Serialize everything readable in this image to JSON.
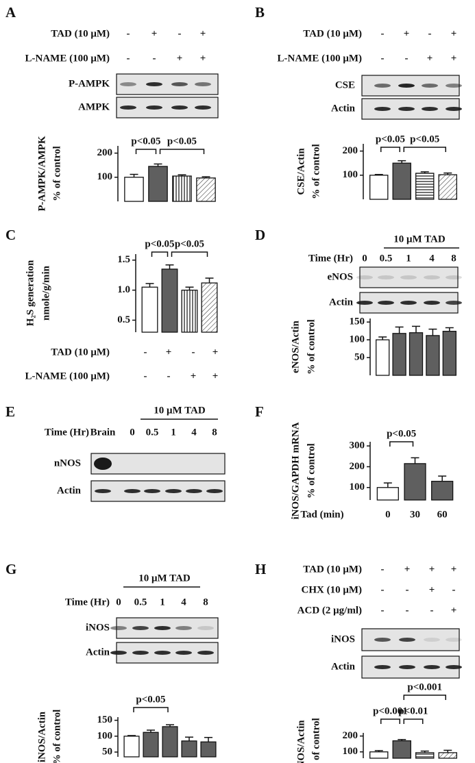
{
  "panels": [
    {
      "letter": "A",
      "treatments": [
        {
          "label": "TAD (10 μM)",
          "signs": [
            "-",
            "+",
            "-",
            "+"
          ]
        },
        {
          "label": "L-NAME (100 μM)",
          "signs": [
            "-",
            "-",
            "+",
            "+"
          ]
        }
      ],
      "blots": [
        "P-AMPK",
        "AMPK"
      ]
    },
    {
      "letter": "B",
      "treatments": [
        {
          "label": "TAD (10 μM)",
          "signs": [
            "-",
            "+",
            "-",
            "+"
          ]
        },
        {
          "label": "L-NAME (100 μM)",
          "signs": [
            "-",
            "-",
            "+",
            "+"
          ]
        }
      ],
      "blots": [
        "CSE",
        "Actin"
      ]
    },
    {
      "letter": "C",
      "treatments": [
        {
          "label": "TAD (10 μM)",
          "signs": [
            "-",
            "+",
            "-",
            "+"
          ]
        },
        {
          "label": "L-NAME (100 μM)",
          "signs": [
            "-",
            "-",
            "+",
            "+"
          ]
        }
      ]
    },
    {
      "letter": "D",
      "header": "10 μM TAD",
      "time_label": "Time (Hr)",
      "lanes": [
        "0",
        "0.5",
        "1",
        "4",
        "8"
      ],
      "blots": [
        "eNOS",
        "Actin"
      ]
    },
    {
      "letter": "E",
      "header": "10 μM TAD",
      "time_label": "Time (Hr)",
      "lanes": [
        "Brain",
        "0",
        "0.5",
        "1",
        "4",
        "8"
      ],
      "blots": [
        "nNOS",
        "Actin"
      ]
    },
    {
      "letter": "F"
    },
    {
      "letter": "G",
      "header": "10 μM TAD",
      "time_label": "Time (Hr)",
      "lanes": [
        "0",
        "0.5",
        "1",
        "4",
        "8"
      ],
      "blots": [
        "iNOS",
        "Actin"
      ]
    },
    {
      "letter": "H",
      "treatments": [
        {
          "label": "TAD (10 μM)",
          "signs": [
            "-",
            "+",
            "+",
            "+"
          ]
        },
        {
          "label": "CHX (10 μM)",
          "signs": [
            "-",
            "-",
            "+",
            "-"
          ]
        },
        {
          "label": "ACD (2 μg/ml)",
          "signs": [
            "-",
            "-",
            "-",
            "+"
          ]
        }
      ],
      "blots": [
        "iNOS",
        "Actin"
      ]
    }
  ],
  "chart_data": [
    {
      "type": "bar",
      "ylabel": [
        "P-AMPK/AMPK",
        "% of control"
      ],
      "values": [
        100,
        145,
        105,
        97
      ],
      "errors": [
        12,
        10,
        5,
        5
      ],
      "bar_fills": [
        "white",
        "dark",
        "vstripes",
        "hatch"
      ],
      "ylim": [
        0,
        230
      ],
      "yticks": [
        100,
        200
      ],
      "annotations": [
        "p<0.05",
        "p<0.05"
      ]
    },
    {
      "type": "bar",
      "ylabel": [
        "CSE/Actin",
        "% of control"
      ],
      "values": [
        100,
        150,
        108,
        102
      ],
      "errors": [
        3,
        10,
        6,
        7
      ],
      "bar_fills": [
        "white",
        "dark",
        "hstripes",
        "hatch"
      ],
      "ylim": [
        0,
        230
      ],
      "yticks": [
        100,
        200
      ],
      "annotations": [
        "p<0.05",
        "p<0.05"
      ]
    },
    {
      "type": "bar",
      "ylabel": [
        "H₂S generation",
        "nmole/g/min"
      ],
      "values": [
        1.05,
        1.35,
        1.0,
        1.12
      ],
      "errors": [
        0.06,
        0.07,
        0.05,
        0.08
      ],
      "bar_fills": [
        "white",
        "dark",
        "vstripes",
        "hatch"
      ],
      "ylim": [
        0.3,
        1.6
      ],
      "yticks": [
        0.5,
        {
          "value": 1.0,
          "label": "1.0"
        },
        1.5
      ],
      "annotations": [
        "p<0.05",
        "p<0.05"
      ]
    },
    {
      "type": "bar",
      "ylabel": [
        "eNOS/Actin",
        "% of control"
      ],
      "values": [
        100,
        118,
        120,
        112,
        124
      ],
      "errors": [
        8,
        18,
        18,
        18,
        10
      ],
      "bar_fills": [
        "white",
        "dark",
        "dark",
        "dark",
        "dark"
      ],
      "ylim": [
        0,
        160
      ],
      "yticks": [
        50,
        100,
        150
      ],
      "annotations": []
    },
    {
      "type": "bar",
      "ylabel": [
        "iNOS/GAPDH mRNA",
        "% of control"
      ],
      "xlabel": "Tad (min)",
      "categories": [
        "0",
        "30",
        "60"
      ],
      "values": [
        100,
        215,
        130
      ],
      "errors": [
        22,
        28,
        25
      ],
      "bar_fills": [
        "white",
        "dark",
        "dark"
      ],
      "ylim": [
        40,
        320
      ],
      "yticks": [
        100,
        200,
        300
      ],
      "annotations": [
        "p<0.05"
      ]
    },
    {
      "type": "bar",
      "ylabel": [
        "iNOS/Actin",
        "% of control"
      ],
      "values": [
        100,
        112,
        130,
        85,
        82
      ],
      "errors": [
        2,
        7,
        6,
        12,
        14
      ],
      "bar_fills": [
        "white",
        "dark",
        "dark",
        "dark",
        "dark"
      ],
      "ylim": [
        35,
        160
      ],
      "yticks": [
        50,
        100,
        150
      ],
      "annotations": [
        "p<0.05"
      ]
    },
    {
      "type": "bar",
      "ylabel": [
        "iNOS/Actin",
        "% of control"
      ],
      "values": [
        100,
        170,
        95,
        95
      ],
      "errors": [
        8,
        8,
        10,
        15
      ],
      "bar_fills": [
        "white",
        "dark",
        "hstripes",
        "hatch"
      ],
      "ylim": [
        60,
        220
      ],
      "yticks": [
        100,
        200
      ],
      "annotations": [
        "p<0.001",
        "p<0.01",
        "p<0.001"
      ]
    }
  ]
}
